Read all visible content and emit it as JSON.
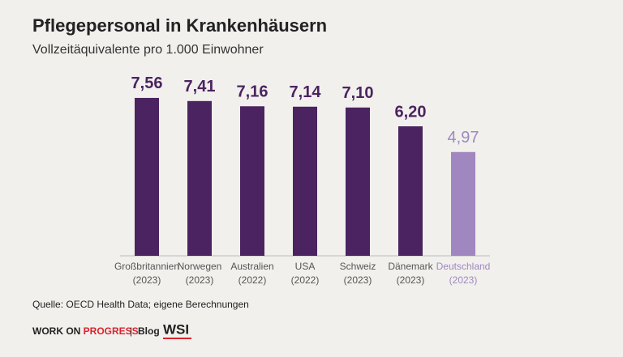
{
  "chart_data": {
    "type": "bar",
    "title": "Pflegepersonal in Krankenhäusern",
    "subtitle": "Vollzeitäquivalente pro 1.000 Einwohner",
    "categories": [
      "Großbritannien",
      "Norwegen",
      "Australien",
      "USA",
      "Schweiz",
      "Dänemark",
      "Deutschland"
    ],
    "periods": [
      "(2023)",
      "(2023)",
      "(2022)",
      "(2022)",
      "(2023)",
      "(2023)",
      "(2023)"
    ],
    "values": [
      7.56,
      7.41,
      7.16,
      7.14,
      7.1,
      6.2,
      4.97
    ],
    "value_labels": [
      "7,56",
      "7,41",
      "7,16",
      "7,14",
      "7,10",
      "6,20",
      "4,97"
    ],
    "colors": [
      "#4b2360",
      "#4b2360",
      "#4b2360",
      "#4b2360",
      "#4b2360",
      "#4b2360",
      "#a187bf"
    ],
    "source": "Quelle: OECD Health Data; eigene Berechnungen"
  },
  "footer": {
    "brand_a": "WORK ON",
    "brand_b": "PROGRESS",
    "separator": "|",
    "blog": "Blog",
    "logo": "WSI"
  }
}
